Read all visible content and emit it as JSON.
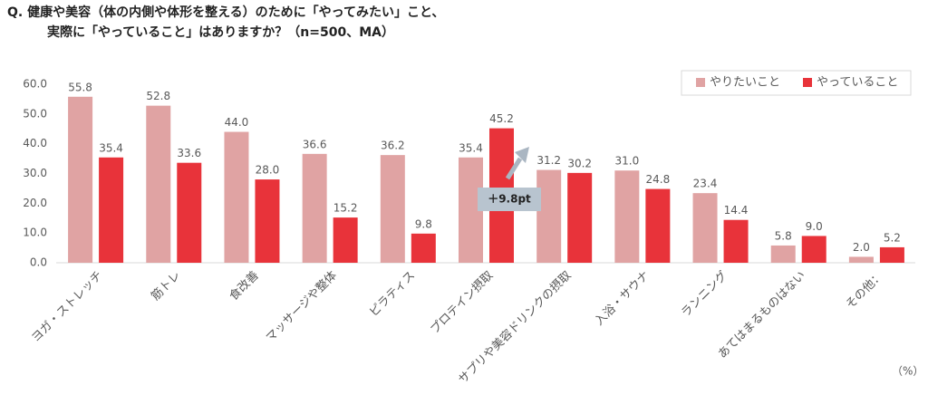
{
  "chart_data": {
    "type": "bar",
    "title": [
      "Q. 健康や美容（体の内側や体形を整える）のために「やってみたい」こと、",
      "実際に「やっていること」はありますか？（n=500、MA）"
    ],
    "categories": [
      "ヨガ・ストレッチ",
      "筋トレ",
      "食改善",
      "マッサージや整体",
      "ピラティス",
      "プロテイン摂取",
      "サプリや美容ドリンクの摂取",
      "入浴・サウナ",
      "ランニング",
      "あてはまるものはない",
      "その他："
    ],
    "series": [
      {
        "name": "やりたいこと",
        "color": "#e0a3a3",
        "values": [
          55.8,
          52.8,
          44.0,
          36.6,
          36.2,
          35.4,
          31.2,
          31.0,
          23.4,
          5.8,
          2.0
        ],
        "value_labels": [
          "55.8",
          "52.8",
          "44.0",
          "36.6",
          "36.2",
          "35.4",
          "31.2",
          "31.0",
          "23.4",
          "5.8",
          "2.0"
        ]
      },
      {
        "name": "やっていること",
        "color": "#e8333a",
        "values": [
          35.4,
          33.6,
          28.0,
          15.2,
          9.8,
          45.2,
          30.2,
          24.8,
          14.4,
          9.0,
          5.2
        ],
        "value_labels": [
          "35.4",
          "33.6",
          "28.0",
          "15.2",
          "9.8",
          "45.2",
          "30.2",
          "24.8",
          "14.4",
          "9.0",
          "5.2"
        ]
      }
    ],
    "ylim": [
      0,
      60
    ],
    "yticks": [
      {
        "value": 0,
        "label": "0.0"
      },
      {
        "value": 10,
        "label": "10.0"
      },
      {
        "value": 20,
        "label": "20.0"
      },
      {
        "value": 30,
        "label": "30.0"
      },
      {
        "value": 40,
        "label": "40.0"
      },
      {
        "value": 50,
        "label": "50.0"
      },
      {
        "value": 60,
        "label": "60.0"
      }
    ],
    "grid": false,
    "legend": "top-right",
    "annotation": "＋9.8pt",
    "unit": "（%）"
  }
}
